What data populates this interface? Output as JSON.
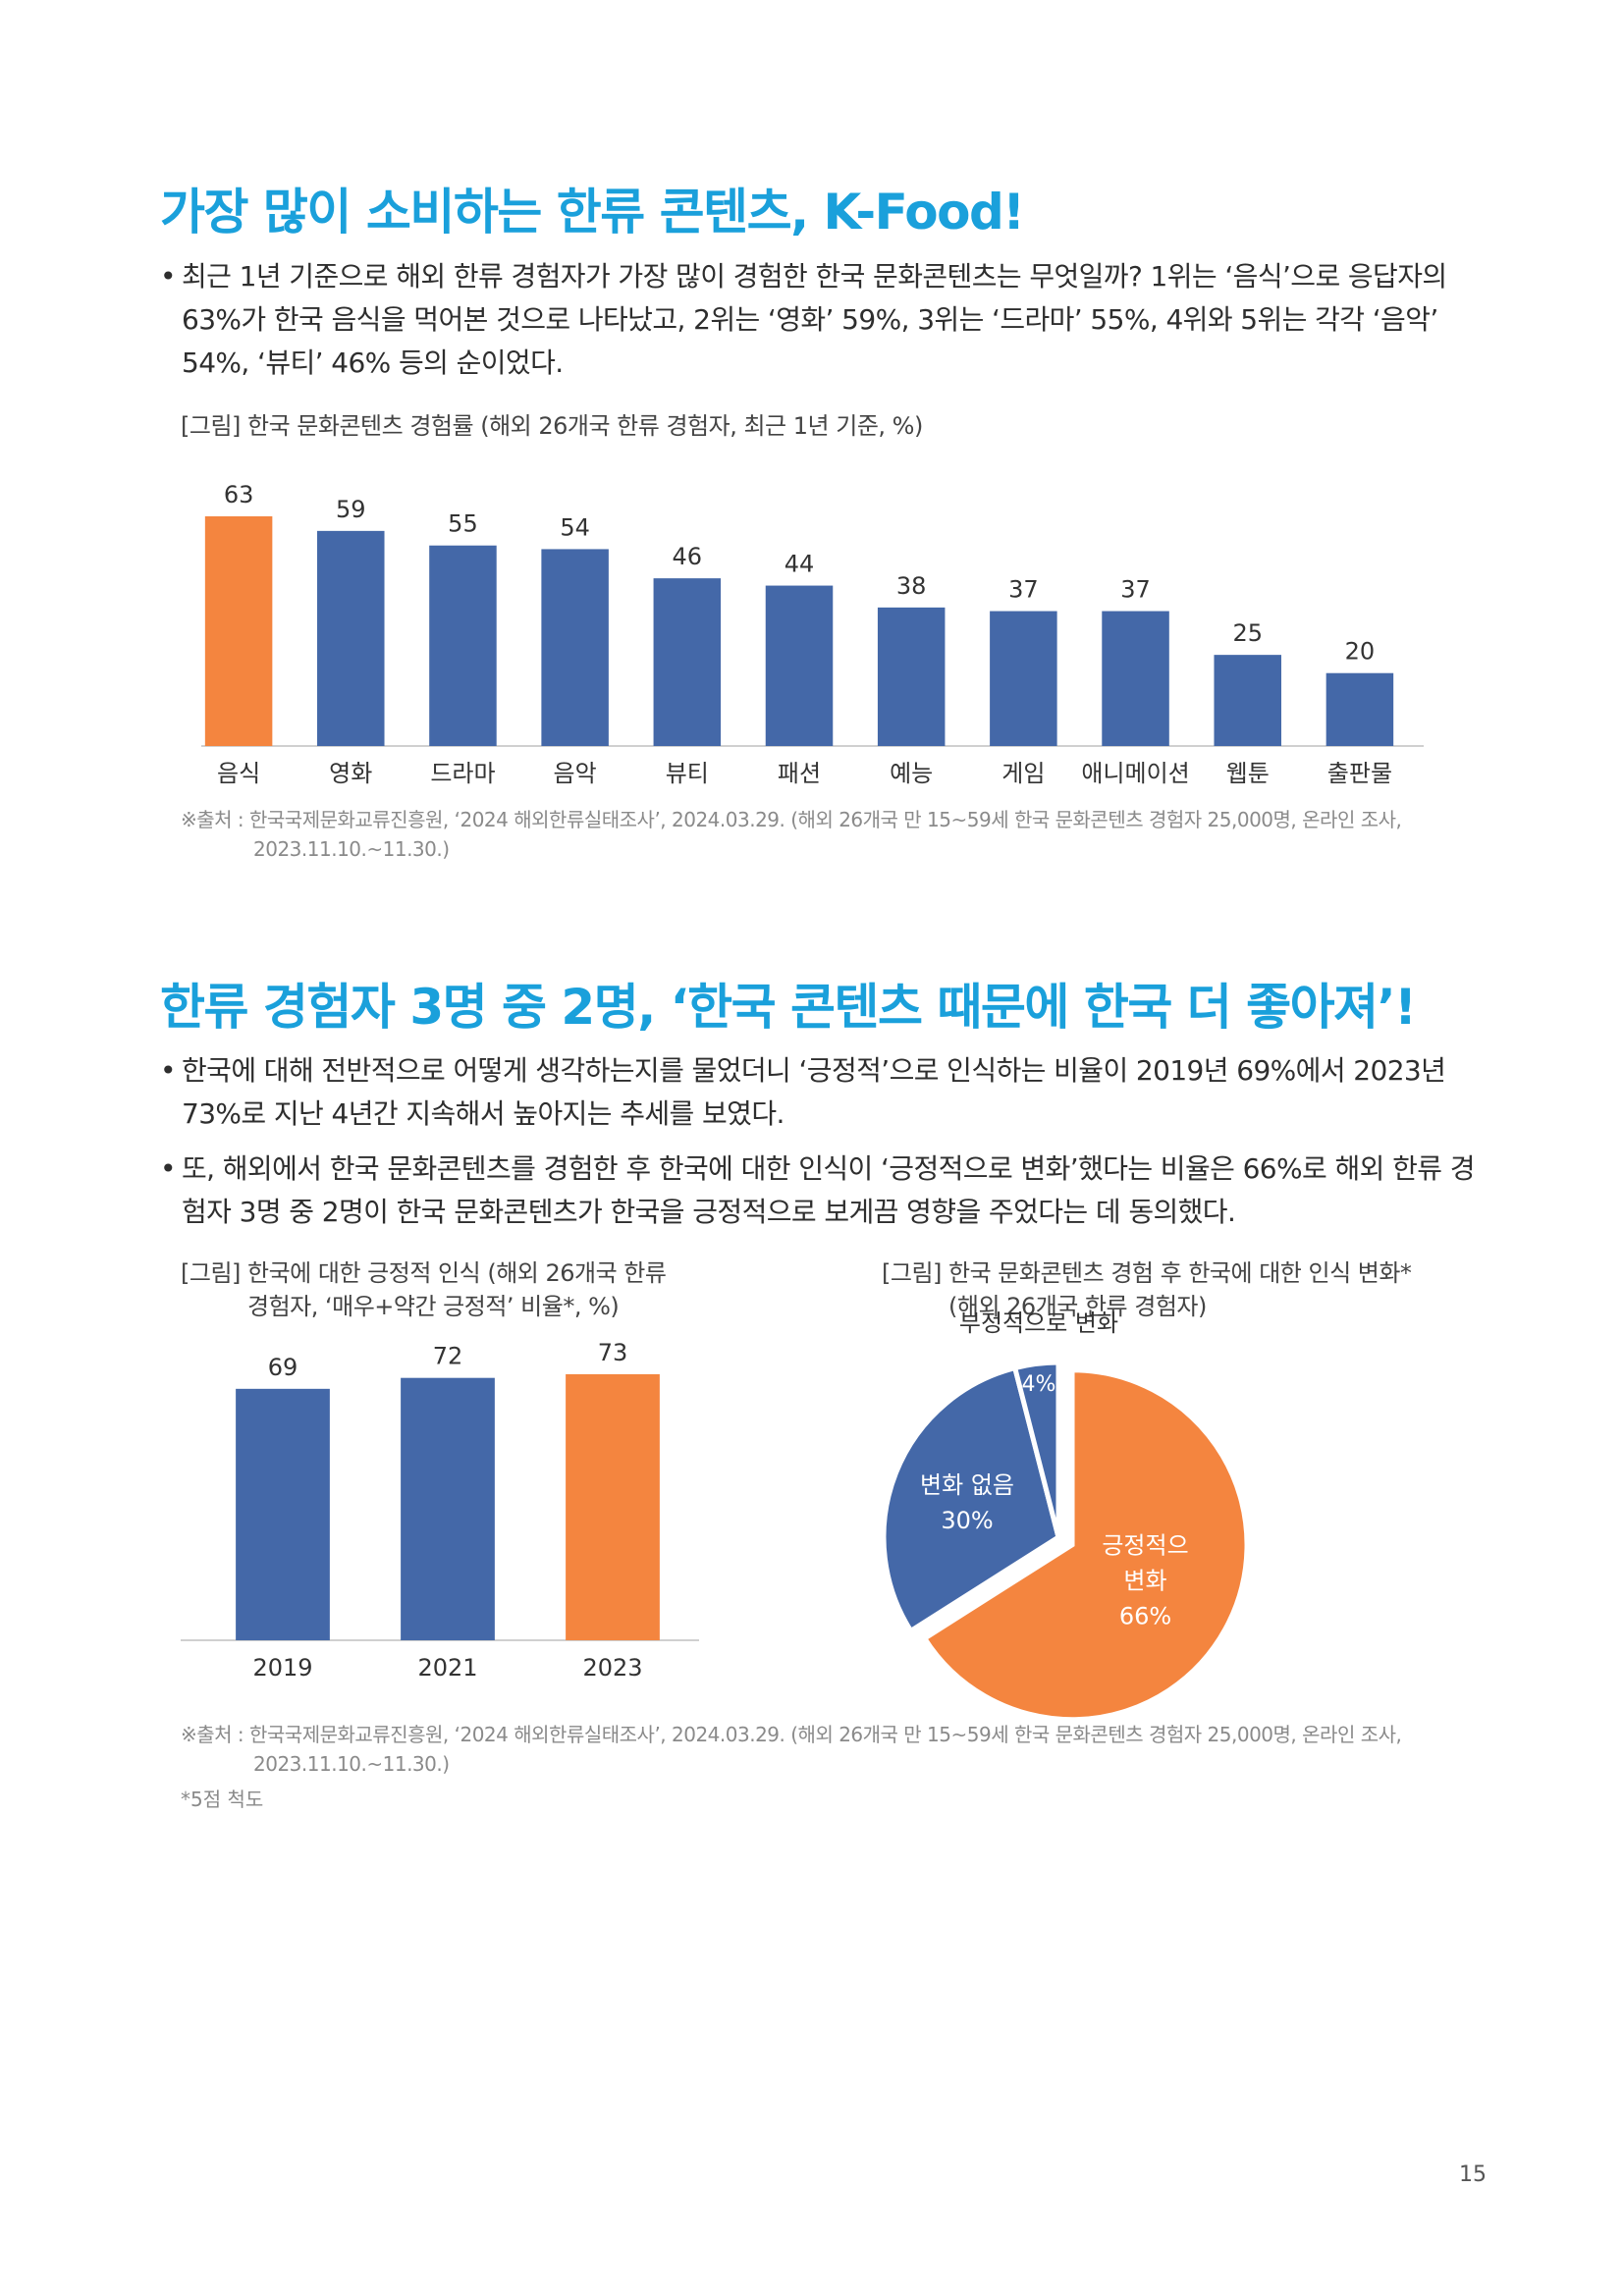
{
  "section1": {
    "heading": "가장 많이 소비하는 한류 콘텐츠, K-Food!",
    "bullets": [
      "최근 1년 기준으로 해외 한류 경험자가 가장 많이 경험한 한국 문화콘텐츠는 무엇일까? 1위는 ‘음식’으로 응답자의 63%가 한국 음식을 먹어본 것으로 나타났고, 2위는 ‘영화’ 59%, 3위는 ‘드라마’ 55%, 4위와 5위는 각각 ‘음악’ 54%, ‘뷰티’ 46% 등의 순이었다."
    ],
    "figure_caption": "[그림] 한국 문화콘텐츠 경험률 (해외 26개국 한류 경험자, 최근 1년 기준, %)",
    "source_line1": "※출처 : 한국국제문화교류진흥원, ‘2024 해외한류실태조사’, 2024.03.29. (해외 26개국 만 15~59세 한국 문화콘텐츠 경험자 25,000명, 온라인 조사,",
    "source_line2": "2023.11.10.~11.30.)"
  },
  "section2": {
    "heading": "한류 경험자 3명 중 2명, ‘한국 콘텐츠 때문에 한국 더 좋아져’!",
    "bullets": [
      "한국에 대해 전반적으로 어떻게 생각하는지를 물었더니 ‘긍정적’으로 인식하는 비율이 2019년 69%에서 2023년 73%로 지난 4년간 지속해서 높아지는 추세를 보였다.",
      "또, 해외에서 한국 문화콘텐츠를 경험한 후 한국에 대한 인식이 ‘긍정적으로 변화’했다는 비율은 66%로 해외 한류 경험자 3명 중 2명이 한국 문화콘텐츠가 한국을 긍정적으로 보게끔 영향을 주었다는 데 동의했다."
    ],
    "fig_left_caption_line1": "[그림] 한국에 대한 긍정적 인식 (해외 26개국 한류",
    "fig_left_caption_line2": "경험자, ‘매우+약간 긍정적’ 비율*, %)",
    "fig_right_caption_line1": "[그림] 한국 문화콘텐츠 경험 후 한국에 대한 인식 변화*",
    "fig_right_caption_line2": "(해외 26개국 한류 경험자)",
    "source_line1": "※출처 : 한국국제문화교류진흥원, ‘2024 해외한류실태조사’, 2024.03.29. (해외 26개국 만 15~59세 한국 문화콘텐츠 경험자 25,000명, 온라인 조사,",
    "source_line2": "2023.11.10.~11.30.)",
    "footnote": "*5점 척도"
  },
  "page_number": "15",
  "colors": {
    "blue": "#4468a8",
    "orange": "#f4853f",
    "heading": "#1aa0db"
  },
  "chart_data": [
    {
      "type": "bar",
      "categories": [
        "음식",
        "영화",
        "드라마",
        "음악",
        "뷰티",
        "패션",
        "예능",
        "게임",
        "애니메이션",
        "웹툰",
        "출판물"
      ],
      "values": [
        63,
        59,
        55,
        54,
        46,
        44,
        38,
        37,
        37,
        25,
        20
      ],
      "highlight_index": 0,
      "ylim": [
        0,
        70
      ],
      "grid": false,
      "data_labels": true
    },
    {
      "type": "bar",
      "categories": [
        "2019",
        "2021",
        "2023"
      ],
      "values": [
        69,
        72,
        73
      ],
      "highlight_index": 2,
      "ylim": [
        0,
        80
      ],
      "grid": false,
      "data_labels": true
    },
    {
      "type": "pie",
      "slices": [
        {
          "label": "긍정적으로 변화",
          "value": 66,
          "value_label": "66%",
          "color": "#f4853f",
          "exploded": true
        },
        {
          "label": "변화 없음",
          "value": 30,
          "value_label": "30%",
          "color": "#4468a8",
          "exploded": false
        },
        {
          "label": "부정적으로 변화",
          "value": 4,
          "value_label": "4%",
          "color": "#4468a8",
          "exploded": false
        }
      ]
    }
  ]
}
